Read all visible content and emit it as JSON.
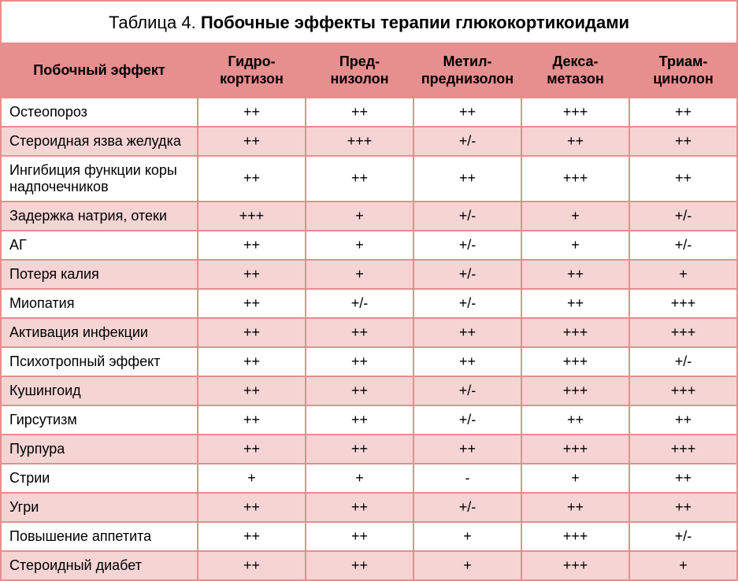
{
  "colors": {
    "header_bg": "#e78e8e",
    "stripe_bg": "#f5d4d4",
    "border": "#e78e8e",
    "text": "#000000",
    "background": "#ffffff"
  },
  "table": {
    "caption_prefix": "Таблица 4. ",
    "caption_bold": "Побочные эффекты терапии глюкокортикоидами",
    "row_header": "Побочный эффект",
    "columns": [
      "Гидро-\nкортизон",
      "Пред-\nнизолон",
      "Метил-\nпреднизолон",
      "Декса-\nметазон",
      "Триам-\nцинолон"
    ],
    "rows": [
      {
        "label": "Остеопороз",
        "cells": [
          "++",
          "++",
          "++",
          "+++",
          "++"
        ]
      },
      {
        "label": "Стероидная язва желудка",
        "cells": [
          "++",
          "+++",
          "+/-",
          "++",
          "++"
        ]
      },
      {
        "label": "Ингибиция функции коры надпочечников",
        "cells": [
          "++",
          "++",
          "++",
          "+++",
          "++"
        ]
      },
      {
        "label": "Задержка натрия, отеки",
        "cells": [
          "+++",
          "+",
          "+/-",
          "+",
          "+/-"
        ]
      },
      {
        "label": "АГ",
        "cells": [
          "++",
          "+",
          "+/-",
          "+",
          "+/-"
        ]
      },
      {
        "label": "Потеря калия",
        "cells": [
          "++",
          "+",
          "+/-",
          "++",
          "+"
        ]
      },
      {
        "label": "Миопатия",
        "cells": [
          "++",
          "+/-",
          "+/-",
          "++",
          "+++"
        ]
      },
      {
        "label": "Активация инфекции",
        "cells": [
          "++",
          "++",
          "++",
          "+++",
          "+++"
        ]
      },
      {
        "label": "Психотропный эффект",
        "cells": [
          "++",
          "++",
          "++",
          "+++",
          "+/-"
        ]
      },
      {
        "label": "Кушингоид",
        "cells": [
          "++",
          "++",
          "+/-",
          "+++",
          "+++"
        ]
      },
      {
        "label": "Гирсутизм",
        "cells": [
          "++",
          "++",
          "+/-",
          "++",
          "++"
        ]
      },
      {
        "label": "Пурпура",
        "cells": [
          "++",
          "++",
          "++",
          "+++",
          "+++"
        ]
      },
      {
        "label": "Стрии",
        "cells": [
          "+",
          "+",
          "-",
          "+",
          "++"
        ]
      },
      {
        "label": "Угри",
        "cells": [
          "++",
          "++",
          "+/-",
          "++",
          "++"
        ]
      },
      {
        "label": "Повышение аппетита",
        "cells": [
          "++",
          "++",
          "+",
          "+++",
          "+/-"
        ]
      },
      {
        "label": "Стероидный диабет",
        "cells": [
          "++",
          "++",
          "+",
          "+++",
          "+"
        ]
      }
    ]
  },
  "typography": {
    "caption_fontsize": 22,
    "header_fontsize": 18,
    "body_fontsize": 18
  }
}
